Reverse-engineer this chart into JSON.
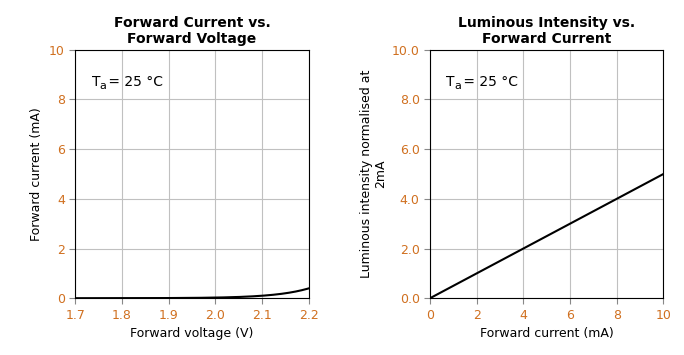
{
  "plot1": {
    "title": "Forward Current vs.\nForward Voltage",
    "xlabel": "Forward voltage (V)",
    "ylabel": "Forward current (mA)",
    "xlim": [
      1.7,
      2.2
    ],
    "ylim": [
      0,
      10
    ],
    "xticks": [
      1.7,
      1.8,
      1.9,
      2.0,
      2.1,
      2.2
    ],
    "xtick_labels": [
      "1.7",
      "1.8",
      "1.9",
      "2.0",
      "2.1",
      "2.2"
    ],
    "yticks": [
      0,
      2,
      4,
      6,
      8,
      10
    ],
    "ytick_labels": [
      "0",
      "2",
      "4",
      "6",
      "8",
      "10"
    ],
    "annotation": "T",
    "diode_Is": 1.5e-07,
    "diode_n": 2.8,
    "diode_Vt": 0.02585,
    "V0": 1.63
  },
  "plot2": {
    "title": "Luminous Intensity vs.\nForward Current",
    "xlabel": "Forward current (mA)",
    "ylabel": "Luminous intensity normalised at\n2mA",
    "xlim": [
      0,
      10
    ],
    "ylim": [
      0.0,
      10.0
    ],
    "xticks": [
      0,
      2,
      4,
      6,
      8,
      10
    ],
    "xtick_labels": [
      "0",
      "2",
      "4",
      "6",
      "8",
      "10"
    ],
    "yticks": [
      0.0,
      2.0,
      4.0,
      6.0,
      8.0,
      10.0
    ],
    "ytick_labels": [
      "0.0",
      "2.0",
      "4.0",
      "6.0",
      "8.0",
      "10.0"
    ],
    "annotation": "T",
    "linear_slope": 0.5,
    "linear_intercept": 0.0
  },
  "line_color": "#000000",
  "grid_color": "#c0c0c0",
  "tick_color": "#d07020",
  "label_color": "#000000",
  "title_fontsize": 10,
  "label_fontsize": 9,
  "tick_fontsize": 9,
  "annotation_fontsize": 10,
  "background_color": "#ffffff"
}
